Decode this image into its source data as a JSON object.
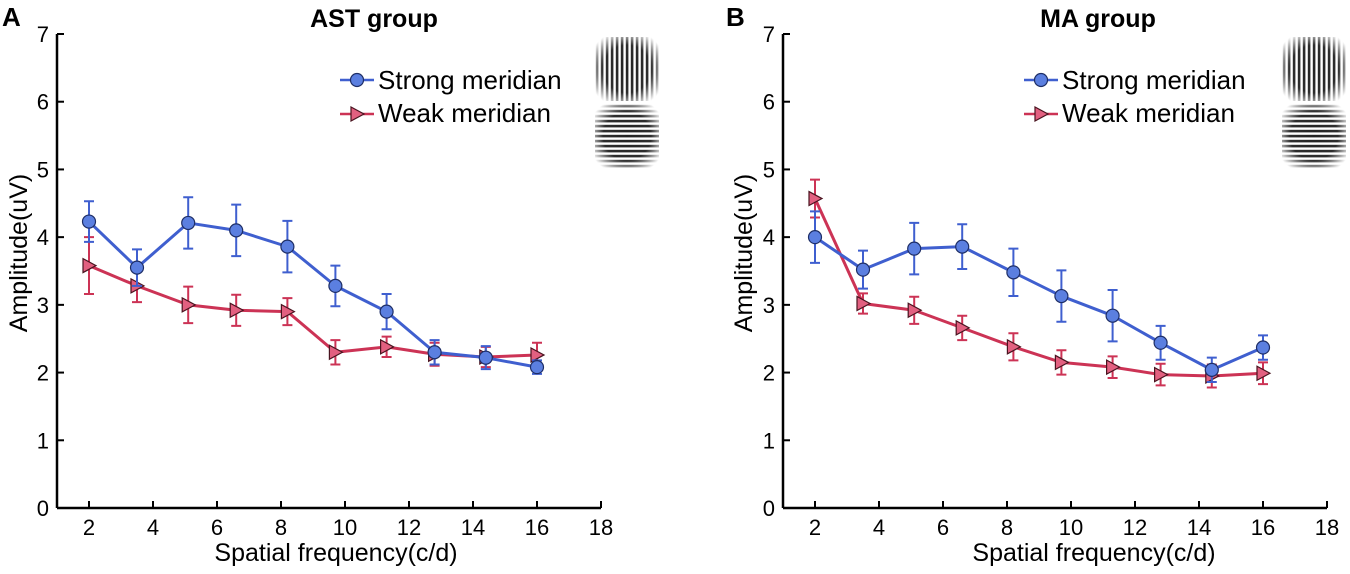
{
  "chart_data": [
    {
      "type": "line",
      "panel_label": "A",
      "title": "AST group",
      "xlabel": "Spatial frequency(c/d)",
      "ylabel": "Amplitude(uV)",
      "xlim": [
        1,
        18
      ],
      "ylim": [
        0,
        7
      ],
      "xticks": [
        2,
        4,
        6,
        8,
        10,
        12,
        14,
        16,
        18
      ],
      "yticks": [
        0,
        1,
        2,
        3,
        4,
        5,
        6,
        7
      ],
      "legend_position": "top-right",
      "grid": false,
      "series": [
        {
          "name": "Strong meridian",
          "color": "#3f5fcf",
          "marker_color": "#5b7fe0",
          "marker": "circle",
          "x": [
            2,
            3.5,
            5.1,
            6.6,
            8.2,
            9.7,
            11.3,
            12.8,
            14.4,
            16
          ],
          "values": [
            4.23,
            3.55,
            4.21,
            4.1,
            3.86,
            3.28,
            2.9,
            2.3,
            2.22,
            2.08
          ],
          "errors": [
            0.3,
            0.27,
            0.38,
            0.38,
            0.38,
            0.3,
            0.26,
            0.18,
            0.17,
            0.1
          ]
        },
        {
          "name": "Weak meridian",
          "color": "#cc3355",
          "marker_color": "#e26080",
          "marker": "triangle-right",
          "x": [
            2,
            3.5,
            5.1,
            6.6,
            8.2,
            9.7,
            11.3,
            12.8,
            14.4,
            16
          ],
          "values": [
            3.58,
            3.28,
            3.0,
            2.92,
            2.9,
            2.3,
            2.38,
            2.27,
            2.23,
            2.26
          ],
          "errors": [
            0.42,
            0.24,
            0.27,
            0.23,
            0.2,
            0.18,
            0.15,
            0.17,
            0.15,
            0.18
          ]
        }
      ],
      "grating_icons": [
        "vertical-grating-icon",
        "horizontal-grating-icon"
      ]
    },
    {
      "type": "line",
      "panel_label": "B",
      "title": "MA group",
      "xlabel": "Spatial frequency(c/d)",
      "ylabel": "Amplitude(uV)",
      "xlim": [
        1,
        18
      ],
      "ylim": [
        0,
        7
      ],
      "xticks": [
        2,
        4,
        6,
        8,
        10,
        12,
        14,
        16,
        18
      ],
      "yticks": [
        0,
        1,
        2,
        3,
        4,
        5,
        6,
        7
      ],
      "legend_position": "top-right",
      "grid": false,
      "series": [
        {
          "name": "Strong meridian",
          "color": "#3f5fcf",
          "marker_color": "#5b7fe0",
          "marker": "circle",
          "x": [
            2,
            3.5,
            5.1,
            6.6,
            8.2,
            9.7,
            11.3,
            12.8,
            14.4,
            16
          ],
          "values": [
            4.0,
            3.52,
            3.83,
            3.86,
            3.48,
            3.13,
            2.84,
            2.44,
            2.04,
            2.37
          ],
          "errors": [
            0.38,
            0.28,
            0.38,
            0.33,
            0.35,
            0.38,
            0.38,
            0.25,
            0.18,
            0.18
          ]
        },
        {
          "name": "Weak meridian",
          "color": "#cc3355",
          "marker_color": "#e26080",
          "marker": "triangle-right",
          "x": [
            2,
            3.5,
            5.1,
            6.6,
            8.2,
            9.7,
            11.3,
            12.8,
            14.4,
            16
          ],
          "values": [
            4.57,
            3.02,
            2.92,
            2.66,
            2.38,
            2.15,
            2.08,
            1.97,
            1.95,
            1.99
          ],
          "errors": [
            0.28,
            0.15,
            0.2,
            0.18,
            0.2,
            0.18,
            0.16,
            0.16,
            0.17,
            0.16
          ]
        }
      ],
      "grating_icons": [
        "vertical-grating-icon",
        "horizontal-grating-icon"
      ]
    }
  ]
}
